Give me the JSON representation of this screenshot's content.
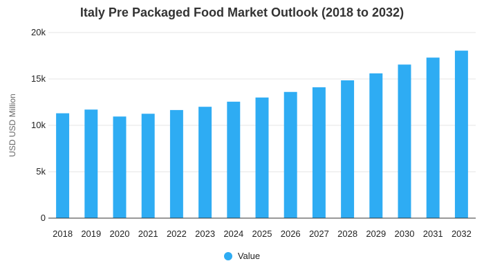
{
  "chart_data": {
    "type": "bar",
    "title": "Italy Pre Packaged Food Market Outlook (2018 to 2032)",
    "xlabel": "",
    "ylabel": "USD USD Million",
    "categories": [
      "2018",
      "2019",
      "2020",
      "2021",
      "2022",
      "2023",
      "2024",
      "2025",
      "2026",
      "2027",
      "2028",
      "2029",
      "2030",
      "2031",
      "2032"
    ],
    "series": [
      {
        "name": "Value",
        "values": [
          11300,
          11700,
          10950,
          11250,
          11650,
          12000,
          12550,
          13000,
          13600,
          14100,
          14850,
          15600,
          16550,
          17300,
          18050
        ]
      }
    ],
    "ylim": [
      0,
      20000
    ],
    "yticks": [
      0,
      5000,
      10000,
      15000,
      20000
    ],
    "ytick_labels": [
      "0",
      "5k",
      "10k",
      "15k",
      "20k"
    ],
    "grid": true,
    "legend_position": "bottom-center",
    "colors": {
      "bar": "#2eacf3",
      "grid": "#e6e6e6",
      "axis": "#333333"
    }
  }
}
